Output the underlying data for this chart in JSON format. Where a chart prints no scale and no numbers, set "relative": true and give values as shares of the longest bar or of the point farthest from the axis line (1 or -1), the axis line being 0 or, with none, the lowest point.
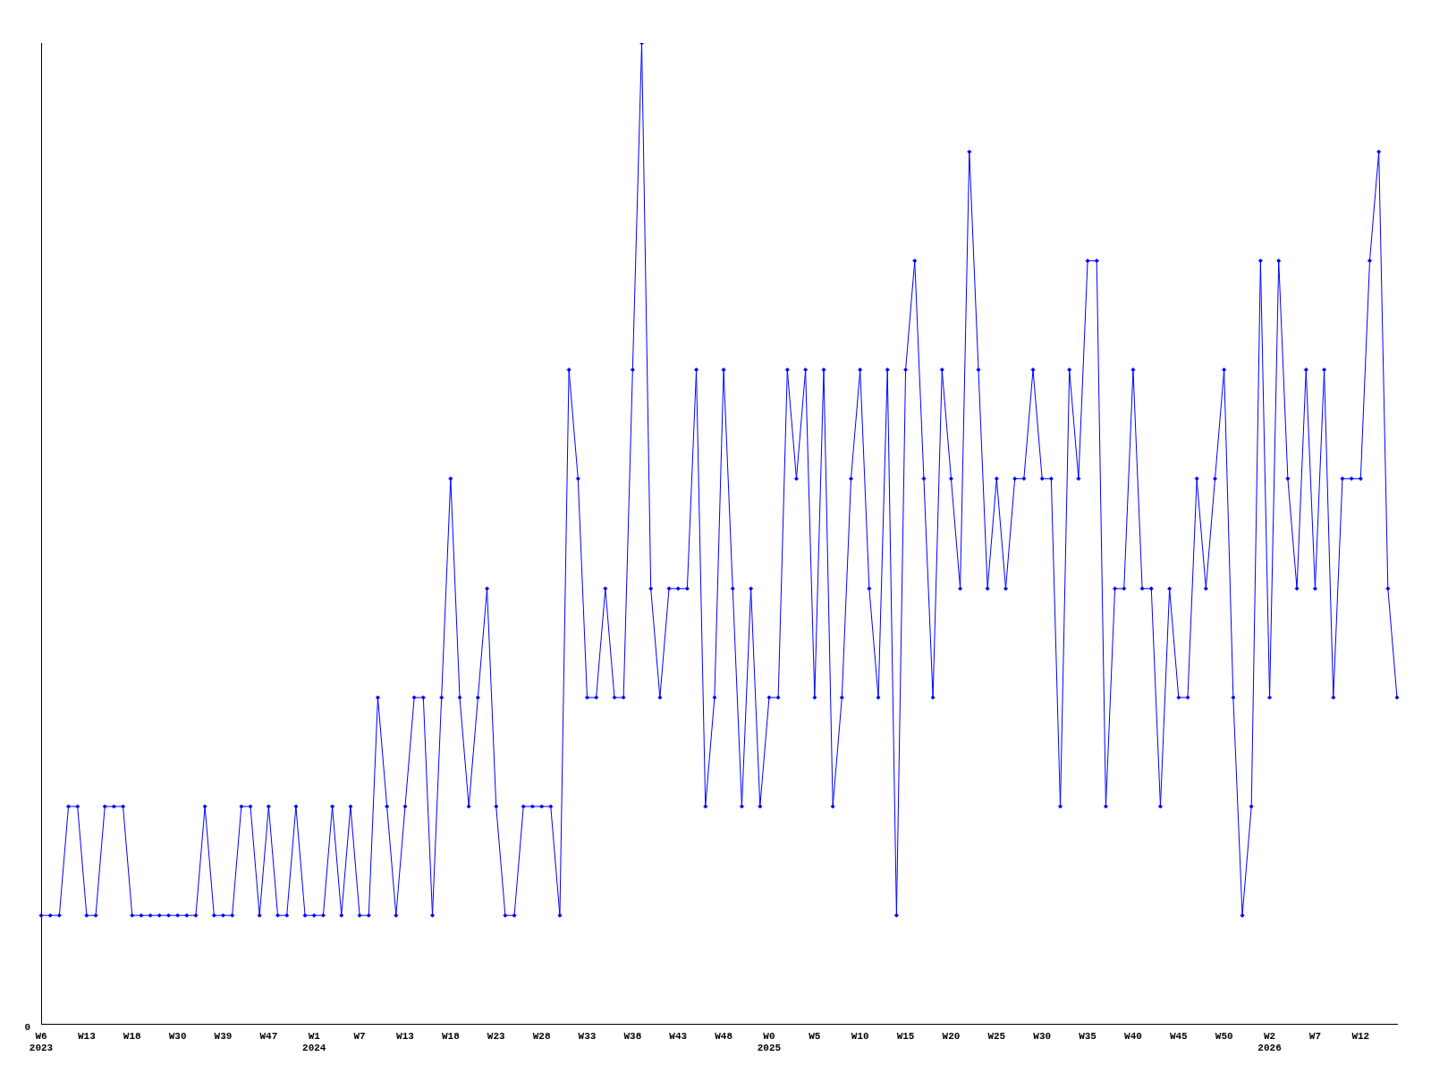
{
  "chart_data": {
    "type": "line",
    "relative": true,
    "grid": false,
    "legend": false,
    "marker": "diamond",
    "line_style": "solid",
    "annotations": [
      "0"
    ],
    "categories": [
      "W6\n2023",
      null,
      null,
      null,
      null,
      "W13",
      null,
      null,
      null,
      null,
      "W18",
      null,
      null,
      null,
      null,
      "W30",
      null,
      null,
      null,
      null,
      "W39",
      null,
      null,
      null,
      null,
      "W47",
      null,
      null,
      null,
      null,
      "W1\n2024",
      null,
      null,
      null,
      null,
      "W7",
      null,
      null,
      null,
      null,
      "W13",
      null,
      null,
      null,
      null,
      "W18",
      null,
      null,
      null,
      null,
      "W23",
      null,
      null,
      null,
      null,
      "W28",
      null,
      null,
      null,
      null,
      "W33",
      null,
      null,
      null,
      null,
      "W38",
      null,
      null,
      null,
      null,
      "W43",
      null,
      null,
      null,
      null,
      "W48",
      null,
      null,
      null,
      null,
      "W0\n2025",
      null,
      null,
      null,
      null,
      "W5",
      null,
      null,
      null,
      null,
      "W10",
      null,
      null,
      null,
      null,
      "W15",
      null,
      null,
      null,
      null,
      "W20",
      null,
      null,
      null,
      null,
      "W25",
      null,
      null,
      null,
      null,
      "W30",
      null,
      null,
      null,
      null,
      "W35",
      null,
      null,
      null,
      null,
      "W40",
      null,
      null,
      null,
      null,
      "W45",
      null,
      null,
      null,
      null,
      "W50",
      null,
      null,
      null,
      null,
      "W2\n2026",
      null,
      null,
      null,
      null,
      "W7",
      null,
      null,
      null,
      null,
      "W12",
      null,
      null,
      null,
      null
    ],
    "series": [
      {
        "color": "#0000ff",
        "values": [
          0.111,
          0.111,
          0.111,
          0.222,
          0.222,
          0.111,
          0.111,
          0.222,
          0.222,
          0.222,
          0.111,
          0.111,
          0.111,
          0.111,
          0.111,
          0.111,
          0.111,
          0.111,
          0.222,
          0.111,
          0.111,
          0.111,
          0.222,
          0.222,
          0.111,
          0.222,
          0.111,
          0.111,
          0.222,
          0.111,
          0.111,
          0.111,
          0.222,
          0.111,
          0.222,
          0.111,
          0.111,
          0.333,
          0.222,
          0.111,
          0.222,
          0.333,
          0.333,
          0.111,
          0.333,
          0.556,
          0.333,
          0.222,
          0.333,
          0.444,
          0.222,
          0.111,
          0.111,
          0.222,
          0.222,
          0.222,
          0.222,
          0.111,
          0.667,
          0.556,
          0.333,
          0.333,
          0.444,
          0.333,
          0.333,
          0.667,
          1,
          0.444,
          0.333,
          0.444,
          0.444,
          0.444,
          0.667,
          0.222,
          0.333,
          0.667,
          0.444,
          0.222,
          0.444,
          0.222,
          0.333,
          0.333,
          0.667,
          0.556,
          0.667,
          0.333,
          0.667,
          0.222,
          0.333,
          0.556,
          0.667,
          0.444,
          0.333,
          0.667,
          0.111,
          0.667,
          0.778,
          0.556,
          0.333,
          0.667,
          0.556,
          0.444,
          0.889,
          0.667,
          0.444,
          0.556,
          0.444,
          0.556,
          0.556,
          0.667,
          0.556,
          0.556,
          0.222,
          0.667,
          0.556,
          0.778,
          0.778,
          0.222,
          0.444,
          0.444,
          0.667,
          0.444,
          0.444,
          0.222,
          0.444,
          0.333,
          0.333,
          0.556,
          0.444,
          0.556,
          0.667,
          0.333,
          0.111,
          0.222,
          0.778,
          0.333,
          0.778,
          0.556,
          0.444,
          0.667,
          0.444,
          0.667,
          0.333,
          0.556,
          0.556,
          0.556,
          0.778,
          0.889,
          0.444,
          0.333
        ]
      }
    ]
  }
}
